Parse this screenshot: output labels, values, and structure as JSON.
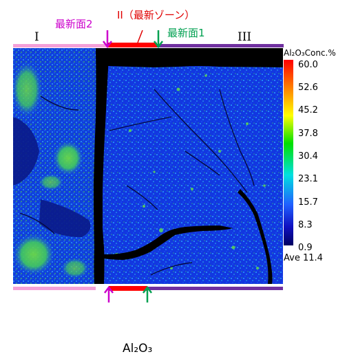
{
  "labels": {
    "zone_1": "I",
    "zone_2": "II（最新ゾーン）",
    "zone_3": "III",
    "surface_2": "最新面2",
    "surface_1": "最新面1"
  },
  "colors": {
    "zone_1_bar": "#f4a0d8",
    "zone_2_bar": "#ff0000",
    "zone_3_bar": "#7030a0",
    "surface_2": "#cc00cc",
    "surface_1": "#00a050",
    "zone_2_label": "#e00000"
  },
  "colorbar": {
    "title": "Al₂O₃Conc.%",
    "ticks": [
      "60.0",
      "52.6",
      "45.2",
      "37.8",
      "30.4",
      "23.1",
      "15.7",
      "8.3",
      "0.9"
    ],
    "average": "Ave 11.4"
  },
  "caption": "Al₂O₃",
  "icons": [
    "arrow-down-icon",
    "arrow-up-icon"
  ]
}
